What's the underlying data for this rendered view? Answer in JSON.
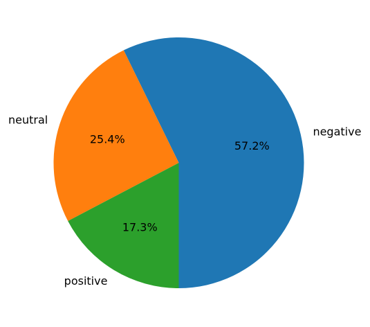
{
  "chart_data": {
    "type": "pie",
    "title": "",
    "categories": [
      "negative",
      "neutral",
      "positive"
    ],
    "values": [
      57.2,
      25.4,
      17.3
    ],
    "value_labels": [
      "57.2%",
      "25.4%",
      "17.3%"
    ],
    "colors": [
      "#1f77b4",
      "#ff7f0e",
      "#2ca02c"
    ],
    "start_angle_deg": 270,
    "direction": "counterclockwise",
    "legend": "none"
  }
}
